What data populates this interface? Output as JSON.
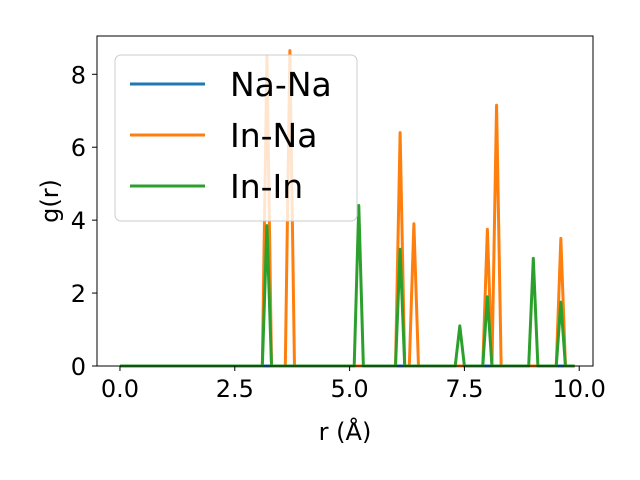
{
  "chart_data": {
    "type": "line",
    "xlabel": "r (Å)",
    "ylabel": "g(r)",
    "xlim": [
      -0.5,
      10.3
    ],
    "ylim": [
      0,
      9.05
    ],
    "xticks": [
      0.0,
      2.5,
      5.0,
      7.5,
      10.0
    ],
    "xtick_labels": [
      "0.0",
      "2.5",
      "5.0",
      "7.5",
      "10.0"
    ],
    "yticks": [
      0,
      2,
      4,
      6,
      8
    ],
    "ytick_labels": [
      "0",
      "2",
      "4",
      "6",
      "8"
    ],
    "grid": false,
    "legend_position": "top-left",
    "series": [
      {
        "name": "Na-Na",
        "color": "#1f77b4",
        "x": [
          0.0,
          9.9
        ],
        "y": [
          0.0,
          0.0
        ]
      },
      {
        "name": "In-Na",
        "color": "#ff7f0e",
        "x": [
          0.0,
          3.1,
          3.2,
          3.3,
          3.6,
          3.7,
          3.8,
          6.0,
          6.1,
          6.2,
          6.3,
          6.4,
          6.5,
          7.9,
          8.0,
          8.1,
          8.2,
          8.3,
          9.5,
          9.6,
          9.7,
          9.9
        ],
        "y": [
          0.0,
          0.0,
          8.5,
          0.0,
          0.0,
          8.65,
          0.0,
          0.0,
          6.4,
          0.0,
          0.0,
          3.9,
          0.0,
          0.0,
          3.75,
          0.0,
          7.15,
          0.0,
          0.0,
          3.5,
          0.0,
          0.0
        ]
      },
      {
        "name": "In-In",
        "color": "#2ca02c",
        "x": [
          0.0,
          3.1,
          3.2,
          3.3,
          5.1,
          5.2,
          5.3,
          6.0,
          6.1,
          6.2,
          7.3,
          7.4,
          7.5,
          7.9,
          8.0,
          8.1,
          8.9,
          9.0,
          9.1,
          9.5,
          9.6,
          9.7,
          9.9
        ],
        "y": [
          0.0,
          0.0,
          3.85,
          0.0,
          0.0,
          4.4,
          0.0,
          0.0,
          3.2,
          0.0,
          0.0,
          1.1,
          0.0,
          0.0,
          1.9,
          0.0,
          0.0,
          2.95,
          0.0,
          0.0,
          1.75,
          0.0,
          0.0
        ]
      }
    ]
  }
}
